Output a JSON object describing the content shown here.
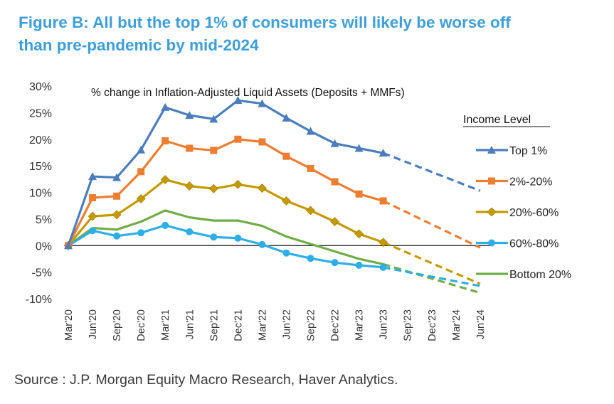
{
  "figure": {
    "title_line1": "Figure B: All but the top 1% of consumers will likely be worse off",
    "title_line2": "than pre-pandemic by mid-2024",
    "source": "Source : J.P. Morgan Equity Macro Research, Haver Analytics."
  },
  "chart_data": {
    "type": "line",
    "title": "% change in Inflation-Adjusted Liquid Assets (Deposits + MMFs)",
    "legend_title": "Income Level",
    "legend_position": "right",
    "xlabel": "",
    "ylabel": "",
    "ylim": [
      -10,
      30
    ],
    "y_ticks": [
      30,
      25,
      20,
      15,
      10,
      5,
      0,
      -5,
      -10
    ],
    "y_tick_labels": [
      "30%",
      "25%",
      "20%",
      "15%",
      "10%",
      "5%",
      "0%",
      "-5%",
      "-10%"
    ],
    "x": [
      "Mar'20",
      "Jun'20",
      "Sep'20",
      "Dec'20",
      "Mar'21",
      "Jun'21",
      "Sep'21",
      "Dec'21",
      "Mar'22",
      "Jun'22",
      "Sep'22",
      "Dec'22",
      "Mar'23",
      "Jun'23",
      "Sep'23",
      "Dec'23",
      "Mar'24",
      "Jun'24"
    ],
    "x_tick_labels": [
      "Mar'20",
      "Jun'20",
      "Sep'20",
      "Dec'20",
      "Mar'21",
      "Jun'21",
      "Sep'21",
      "Dec'21",
      "Mar'22",
      "Jun'22",
      "Sep'22",
      "Dec'22",
      "Mar'23",
      "Jun'23",
      "Sep'23",
      "Dec'23",
      "Mar'24",
      "Jun'24"
    ],
    "grid": false,
    "zero_line": true,
    "projection_note": "dashed lines are projections from Jun'23 to Jun'24",
    "series": [
      {
        "name": "Top 1%",
        "color": "#4a7ebb",
        "marker": "triangle",
        "actual": [
          0,
          13.0,
          12.8,
          18.0,
          26.0,
          24.5,
          23.8,
          27.3,
          26.7,
          24.0,
          21.5,
          19.2,
          18.3,
          17.4
        ],
        "projection_end": 10.3
      },
      {
        "name": "2%-20%",
        "color": "#ed7d31",
        "marker": "square",
        "actual": [
          0,
          9.0,
          9.3,
          13.9,
          19.7,
          18.3,
          17.9,
          20.0,
          19.5,
          16.8,
          14.5,
          12.0,
          9.7,
          8.4
        ],
        "projection_end": -0.4
      },
      {
        "name": "20%-60%",
        "color": "#c49a00",
        "marker": "diamond",
        "actual": [
          0,
          5.5,
          5.8,
          8.8,
          12.4,
          11.2,
          10.7,
          11.5,
          10.8,
          8.4,
          6.6,
          4.5,
          2.2,
          0.6
        ],
        "projection_end": -7.2
      },
      {
        "name": "60%-80%",
        "color": "#2eaee6",
        "marker": "circle",
        "actual": [
          0,
          2.8,
          1.8,
          2.4,
          3.8,
          2.6,
          1.6,
          1.4,
          0.2,
          -1.4,
          -2.4,
          -3.2,
          -3.7,
          -4.1
        ],
        "projection_end": -7.6
      },
      {
        "name": "Bottom 20%",
        "color": "#70ad47",
        "marker": "none",
        "actual": [
          0,
          3.3,
          3.0,
          4.5,
          6.6,
          5.3,
          4.7,
          4.7,
          3.7,
          1.7,
          0.3,
          -1.1,
          -2.5,
          -3.5
        ],
        "projection_end": -8.9
      }
    ]
  }
}
